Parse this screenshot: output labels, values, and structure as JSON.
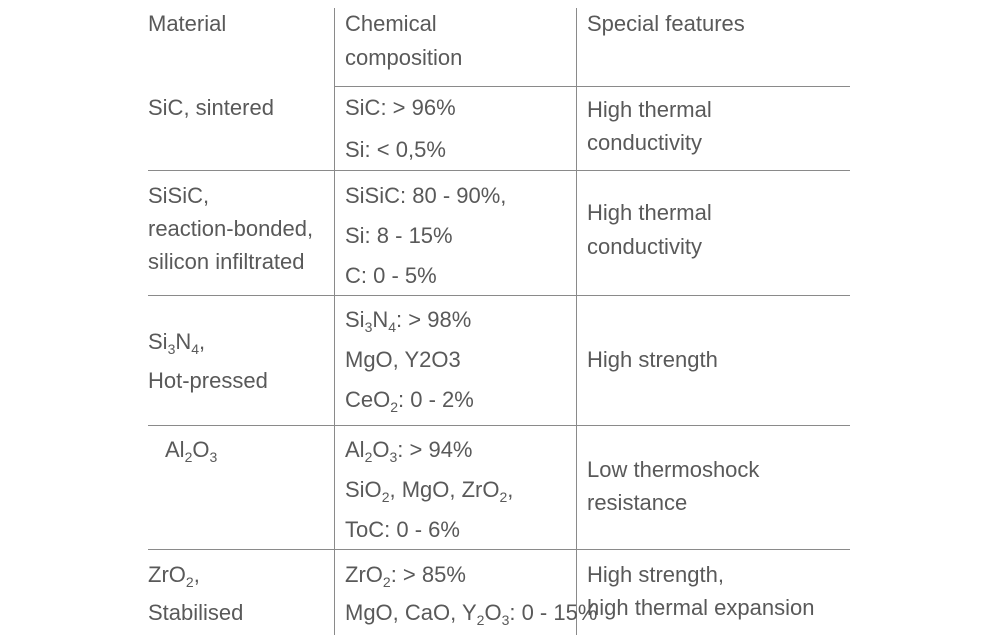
{
  "table": {
    "header": [
      [
        [
          "Material"
        ]
      ],
      [
        [
          "Chemical"
        ],
        [
          "composition"
        ]
      ],
      [
        [
          "Special features"
        ]
      ]
    ],
    "rows": [
      [
        [
          [
            "SiC, sintered"
          ]
        ],
        [
          [
            "SiC: > 96%"
          ],
          [
            "Si: < 0,5%"
          ]
        ],
        [
          [
            "High thermal"
          ],
          [
            "conductivity"
          ]
        ]
      ],
      [
        [
          [
            "SiSiC,"
          ],
          [
            "reaction-bonded,"
          ],
          [
            "silicon infiltrated"
          ]
        ],
        [
          [
            "SiSiC: 80 - 90%,"
          ],
          [
            "Si: 8 - 15%"
          ],
          [
            "C: 0 - 5%"
          ]
        ],
        [
          [
            "High thermal"
          ],
          [
            "conductivity"
          ]
        ]
      ],
      [
        [
          [
            "Si",
            {
              "sub": "3"
            },
            "N",
            {
              "sub": "4"
            },
            ","
          ],
          [
            "Hot-pressed"
          ]
        ],
        [
          [
            "Si",
            {
              "sub": "3"
            },
            "N",
            {
              "sub": "4"
            },
            ": > 98%"
          ],
          [
            "MgO, Y2O3"
          ],
          [
            "CeO",
            {
              "sub": "2"
            },
            ": 0 - 2%"
          ]
        ],
        [
          [
            "High strength"
          ]
        ]
      ],
      [
        [
          [
            "Al",
            {
              "sub": "2"
            },
            "O",
            {
              "sub": "3"
            }
          ]
        ],
        [
          [
            "Al",
            {
              "sub": "2"
            },
            "O",
            {
              "sub": "3"
            },
            ": > 94%"
          ],
          [
            "SiO",
            {
              "sub": "2"
            },
            ", MgO, ZrO",
            {
              "sub": "2"
            },
            ","
          ],
          [
            "ToC: 0 - 6%"
          ]
        ],
        [
          [
            "Low thermoshock"
          ],
          [
            "resistance"
          ]
        ]
      ],
      [
        [
          [
            "ZrO",
            {
              "sub": "2"
            },
            ","
          ],
          [
            "Stabilised"
          ]
        ],
        [
          [
            "ZrO",
            {
              "sub": "2"
            },
            ": > 85%"
          ],
          [
            "MgO, CaO, Y",
            {
              "sub": "2"
            },
            "O",
            {
              "sub": "3"
            },
            ": 0 - 15%"
          ]
        ],
        [
          [
            "High strength,"
          ],
          [
            "high thermal expansion"
          ]
        ]
      ]
    ]
  }
}
